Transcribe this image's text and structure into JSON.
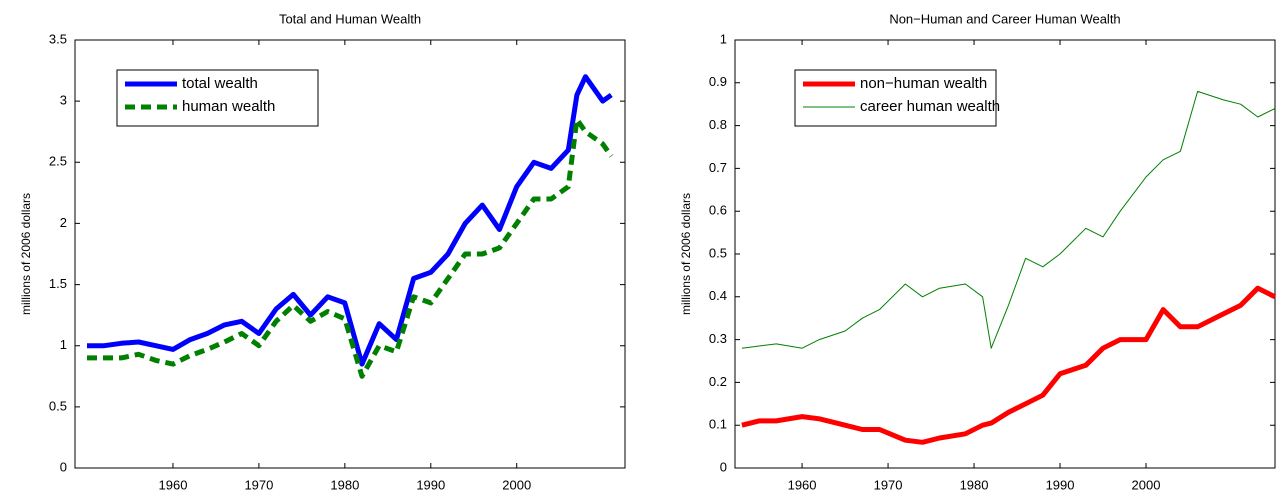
{
  "chart_data": [
    {
      "type": "line",
      "title": "Total and Human Wealth",
      "ylabel": "millions of 2006 dollars",
      "x": [
        1950,
        1952,
        1954,
        1956,
        1958,
        1960,
        1962,
        1964,
        1966,
        1968,
        1970,
        1972,
        1974,
        1976,
        1978,
        1980,
        1982,
        1984,
        1986,
        1988,
        1990,
        1992,
        1994,
        1996,
        1998,
        2000,
        2002,
        2004,
        2006,
        2007,
        2008,
        2010,
        2011
      ],
      "series": [
        {
          "name": "total wealth",
          "color": "#0000ff",
          "line_width": 5,
          "line_style": "solid",
          "values": [
            1.0,
            1.0,
            1.02,
            1.03,
            1.0,
            0.97,
            1.05,
            1.1,
            1.17,
            1.2,
            1.1,
            1.3,
            1.42,
            1.25,
            1.4,
            1.35,
            0.85,
            1.18,
            1.05,
            1.55,
            1.6,
            1.75,
            2.0,
            2.15,
            1.95,
            2.3,
            2.5,
            2.45,
            2.6,
            3.05,
            3.2,
            3.0,
            3.05
          ]
        },
        {
          "name": "human wealth",
          "color": "#008000",
          "line_width": 5,
          "line_style": "dashed",
          "values": [
            0.9,
            0.9,
            0.9,
            0.93,
            0.88,
            0.85,
            0.92,
            0.97,
            1.03,
            1.1,
            1.0,
            1.2,
            1.33,
            1.2,
            1.28,
            1.22,
            0.75,
            1.0,
            0.95,
            1.4,
            1.35,
            1.55,
            1.75,
            1.75,
            1.8,
            2.0,
            2.2,
            2.2,
            2.3,
            2.85,
            2.75,
            2.65,
            2.55
          ]
        }
      ],
      "xlim": [
        1948.6,
        2012.6
      ],
      "xticks": [
        1960,
        1970,
        1980,
        1990,
        2000
      ],
      "ylim": [
        0,
        3.5
      ],
      "yticks": [
        0,
        0.5,
        1,
        1.5,
        2,
        2.5,
        3,
        3.5
      ],
      "legend": "upper left"
    },
    {
      "type": "line",
      "title": "Non−Human and Career Human Wealth",
      "ylabel": "millions of 2006 dollars",
      "x": [
        1953,
        1955,
        1957,
        1960,
        1962,
        1965,
        1967,
        1969,
        1972,
        1974,
        1976,
        1979,
        1981,
        1982,
        1984,
        1986,
        1988,
        1990,
        1993,
        1995,
        1997,
        2000,
        2002,
        2004,
        2006,
        2009,
        2011,
        2013,
        2015
      ],
      "series": [
        {
          "name": "non−human wealth",
          "color": "#ff0000",
          "line_width": 5,
          "line_style": "solid",
          "values": [
            0.1,
            0.11,
            0.11,
            0.12,
            0.115,
            0.1,
            0.09,
            0.09,
            0.065,
            0.06,
            0.07,
            0.08,
            0.1,
            0.105,
            0.13,
            0.15,
            0.17,
            0.22,
            0.24,
            0.28,
            0.3,
            0.3,
            0.37,
            0.33,
            0.33,
            0.36,
            0.38,
            0.42,
            0.4
          ]
        },
        {
          "name": "career human wealth",
          "color": "#008000",
          "line_width": 1,
          "line_style": "solid",
          "values": [
            0.28,
            0.285,
            0.29,
            0.28,
            0.3,
            0.32,
            0.35,
            0.37,
            0.43,
            0.4,
            0.42,
            0.43,
            0.4,
            0.28,
            0.38,
            0.49,
            0.47,
            0.5,
            0.56,
            0.54,
            0.6,
            0.68,
            0.72,
            0.74,
            0.88,
            0.86,
            0.85,
            0.82,
            0.84
          ]
        }
      ],
      "xlim": [
        1952.2,
        2015
      ],
      "xticks": [
        1960,
        1970,
        1980,
        1990,
        2000
      ],
      "ylim": [
        0,
        1
      ],
      "yticks": [
        0,
        0.1,
        0.2,
        0.3,
        0.4,
        0.5,
        0.6,
        0.7,
        0.8,
        0.9,
        1
      ],
      "legend": "upper left"
    }
  ]
}
